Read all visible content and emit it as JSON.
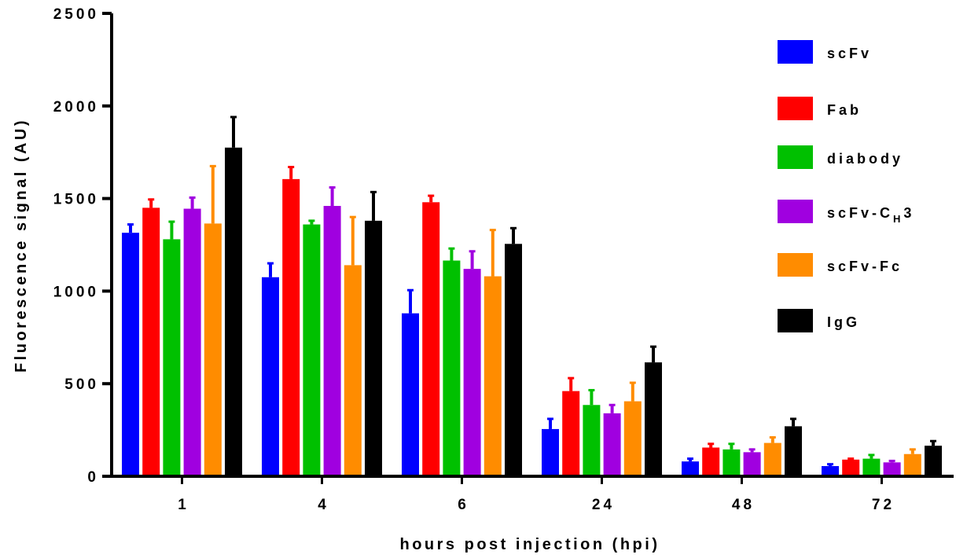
{
  "chart_data": {
    "type": "bar",
    "title": "",
    "xlabel": "hours post injection (hpi)",
    "ylabel": "Fluorescence signal (AU)",
    "ylim": [
      0,
      2500
    ],
    "yticks": [
      0,
      500,
      1000,
      1500,
      2000,
      2500
    ],
    "categories": [
      "1",
      "4",
      "6",
      "24",
      "48",
      "72"
    ],
    "series": [
      {
        "name": "scFv",
        "color": "#0000ff",
        "values": [
          1315,
          1075,
          880,
          255,
          80,
          55
        ],
        "errors": [
          45,
          75,
          125,
          55,
          15,
          10
        ]
      },
      {
        "name": "Fab",
        "color": "#ff0000",
        "values": [
          1450,
          1605,
          1480,
          460,
          155,
          90
        ],
        "errors": [
          45,
          65,
          35,
          70,
          20,
          5
        ]
      },
      {
        "name": "diabody",
        "color": "#00c000",
        "values": [
          1280,
          1360,
          1165,
          385,
          145,
          95
        ],
        "errors": [
          95,
          20,
          65,
          80,
          30,
          20
        ]
      },
      {
        "name": "scFv-CH3",
        "color": "#a000e0",
        "values": [
          1445,
          1460,
          1120,
          340,
          130,
          75
        ],
        "errors": [
          60,
          100,
          95,
          45,
          15,
          8
        ]
      },
      {
        "name": "scFv-Fc",
        "color": "#ff8c00",
        "values": [
          1365,
          1140,
          1080,
          405,
          180,
          120
        ],
        "errors": [
          310,
          260,
          250,
          100,
          30,
          25
        ]
      },
      {
        "name": "IgG",
        "color": "#000000",
        "values": [
          1775,
          1380,
          1255,
          615,
          270,
          165
        ],
        "errors": [
          165,
          155,
          85,
          85,
          40,
          25
        ]
      }
    ],
    "legend": {
      "placement": "right",
      "labels": [
        "scFv",
        "Fab",
        "diabody",
        "scFv-C",
        "scFv-Fc",
        "IgG"
      ],
      "subscript": {
        "index": 3,
        "sub": "H",
        "after": "3"
      }
    },
    "grid": false
  }
}
